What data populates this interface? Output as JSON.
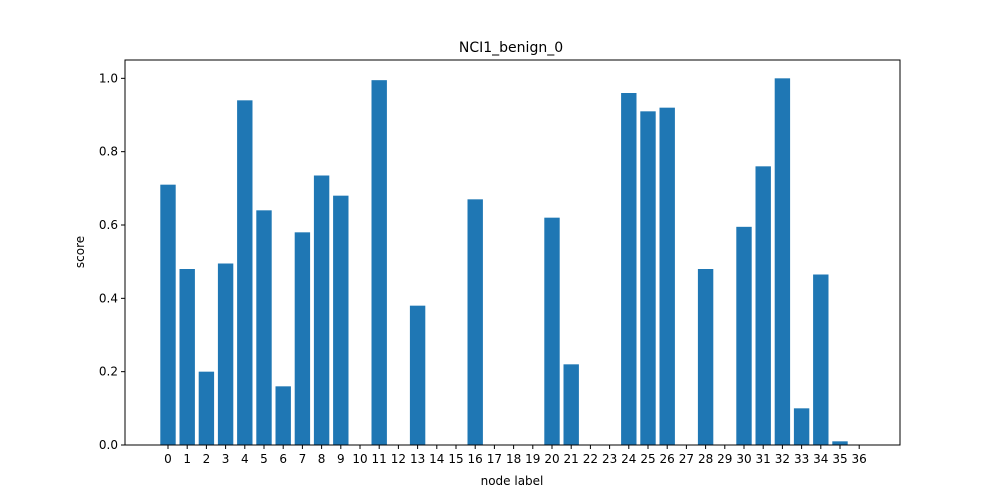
{
  "chart_data": {
    "type": "bar",
    "title": "NCI1_benign_0",
    "xlabel": "node label",
    "ylabel": "score",
    "categories": [
      "0",
      "1",
      "2",
      "3",
      "4",
      "5",
      "6",
      "7",
      "8",
      "9",
      "10",
      "11",
      "12",
      "13",
      "14",
      "15",
      "16",
      "17",
      "18",
      "19",
      "20",
      "21",
      "22",
      "23",
      "24",
      "25",
      "26",
      "27",
      "28",
      "29",
      "30",
      "31",
      "32",
      "33",
      "34",
      "35",
      "36"
    ],
    "values": [
      0.71,
      0.48,
      0.2,
      0.495,
      0.94,
      0.64,
      0.16,
      0.58,
      0.735,
      0.68,
      0.0,
      0.995,
      0.0,
      0.38,
      0.0,
      0.0,
      0.67,
      0.0,
      0.0,
      0.0,
      0.62,
      0.22,
      0.0,
      0.0,
      0.96,
      0.91,
      0.92,
      0.0,
      0.48,
      0.0,
      0.595,
      0.76,
      1.0,
      0.1,
      0.465,
      0.01,
      0.0
    ],
    "ylim": [
      0,
      1.05
    ],
    "yticks": [
      "0.0",
      "0.2",
      "0.4",
      "0.6",
      "0.8",
      "1.0"
    ],
    "bar_color": "#1f77b4",
    "grid": false
  }
}
